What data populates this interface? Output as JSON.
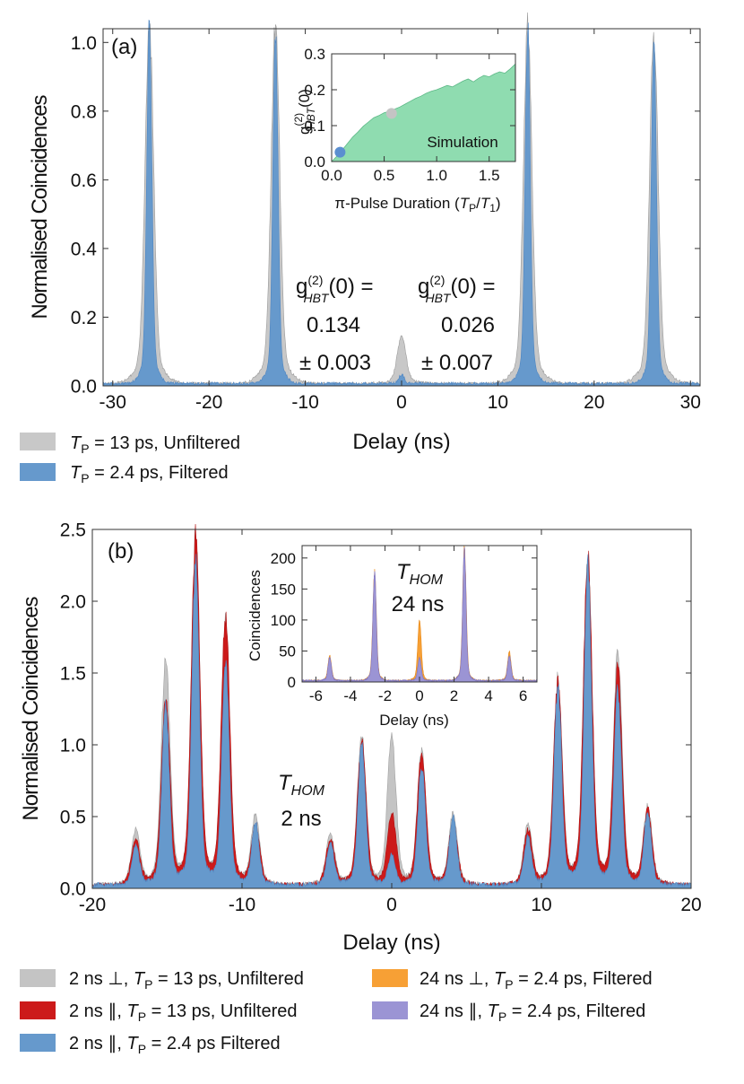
{
  "chart_data": [
    {
      "id": "a",
      "type": "area",
      "panel_label": "(a)",
      "xlabel": "Delay (ns)",
      "ylabel": "Normalised Coincidences",
      "xlim": [
        -31,
        31
      ],
      "ylim": [
        0,
        1.04
      ],
      "xticks": [
        -30,
        -20,
        -10,
        0,
        10,
        20,
        30
      ],
      "yticks": [
        0.0,
        0.2,
        0.4,
        0.6,
        0.8,
        1.0
      ],
      "peak_width_ns": 0.35,
      "series": [
        {
          "name_parts": [
            "T",
            "P",
            " = 13 ps, Unfiltered"
          ],
          "color": "#c8c8c8",
          "peaks": [
            {
              "x": -26.2,
              "y": 1.0
            },
            {
              "x": -13.1,
              "y": 1.0
            },
            {
              "x": 0,
              "y": 0.134
            },
            {
              "x": 13.1,
              "y": 1.0
            },
            {
              "x": 26.2,
              "y": 0.97
            }
          ]
        },
        {
          "name_parts": [
            "T",
            "P",
            " = 2.4 ps, Filtered"
          ],
          "color": "#6699cc",
          "peaks": [
            {
              "x": -26.2,
              "y": 1.0
            },
            {
              "x": -13.1,
              "y": 0.99
            },
            {
              "x": 0,
              "y": 0.026
            },
            {
              "x": 13.1,
              "y": 1.0
            },
            {
              "x": 26.2,
              "y": 0.97
            }
          ]
        }
      ],
      "annotations": {
        "left_label_prefix": "g",
        "left_sup": "(2)",
        "left_sub": "HBT",
        "left_suffix": "(0) =",
        "left_value": "0.134",
        "left_error": "± 0.003",
        "right_label_prefix": "g",
        "right_sup": "(2)",
        "right_sub": "HBT",
        "right_suffix": "(0) =",
        "right_value": "0.026",
        "right_error": "± 0.007",
        "right_color": "#2b4a73"
      },
      "inset": {
        "type": "area",
        "xlabel_prefix": "π-Pulse Duration (",
        "xlabel_var": "T",
        "xlabel_sub1": "P",
        "xlabel_slash": "/",
        "xlabel_var2": "T",
        "xlabel_sub2": "1",
        "xlabel_suffix": ")",
        "ylabel_prefix": "g",
        "ylabel_sup": "(2)",
        "ylabel_sub": "HBT",
        "ylabel_suffix": "(0)",
        "xlim": [
          0,
          1.75
        ],
        "ylim": [
          0,
          0.3
        ],
        "xticks": [
          0.0,
          0.5,
          1.0,
          1.5
        ],
        "yticks": [
          0.0,
          0.1,
          0.2,
          0.3
        ],
        "simulation_label": "Simulation",
        "simulation_color": "#8fdcb0",
        "simulation_x": [
          0.0,
          0.05,
          0.1,
          0.15,
          0.2,
          0.25,
          0.3,
          0.35,
          0.4,
          0.45,
          0.5,
          0.55,
          0.6,
          0.65,
          0.7,
          0.75,
          0.8,
          0.85,
          0.9,
          0.95,
          1.0,
          1.05,
          1.1,
          1.15,
          1.2,
          1.25,
          1.3,
          1.35,
          1.4,
          1.45,
          1.5,
          1.55,
          1.6,
          1.65,
          1.7,
          1.75
        ],
        "simulation_y": [
          0.0,
          0.015,
          0.032,
          0.05,
          0.068,
          0.082,
          0.098,
          0.11,
          0.122,
          0.128,
          0.136,
          0.14,
          0.146,
          0.152,
          0.16,
          0.168,
          0.176,
          0.182,
          0.19,
          0.196,
          0.2,
          0.206,
          0.212,
          0.208,
          0.216,
          0.224,
          0.23,
          0.222,
          0.232,
          0.24,
          0.236,
          0.244,
          0.25,
          0.246,
          0.258,
          0.272
        ],
        "points": [
          {
            "x": 0.08,
            "y": 0.026,
            "color": "#5b8fd0"
          },
          {
            "x": 0.57,
            "y": 0.134,
            "color": "#c4c4c4"
          }
        ]
      }
    },
    {
      "id": "b",
      "type": "area",
      "panel_label": "(b)",
      "xlabel": "Delay (ns)",
      "ylabel": "Normalised Coincidences",
      "xlim": [
        -20,
        20
      ],
      "ylim": [
        0,
        2.5
      ],
      "xticks": [
        -20,
        -10,
        0,
        10,
        20
      ],
      "yticks": [
        0.0,
        0.5,
        1.0,
        1.5,
        2.0,
        2.5
      ],
      "peak_width_ns": 0.28,
      "series": [
        {
          "name_parts": [
            "2 ns ⊥, ",
            "T",
            "P",
            " = 13 ps, Unfiltered"
          ],
          "color": "#c4c4c4",
          "peaks": [
            {
              "x": -17.1,
              "y": 0.36
            },
            {
              "x": -15.1,
              "y": 1.52
            },
            {
              "x": -13.1,
              "y": 2.32
            },
            {
              "x": -11.1,
              "y": 1.75
            },
            {
              "x": -9.1,
              "y": 0.46
            },
            {
              "x": -4.1,
              "y": 0.34
            },
            {
              "x": -2.0,
              "y": 1.0
            },
            {
              "x": 0,
              "y": 1.0
            },
            {
              "x": 2.0,
              "y": 0.9
            },
            {
              "x": 4.1,
              "y": 0.47
            },
            {
              "x": 9.1,
              "y": 0.4
            },
            {
              "x": 11.1,
              "y": 1.38
            },
            {
              "x": 13.1,
              "y": 2.18
            },
            {
              "x": 15.1,
              "y": 1.55
            },
            {
              "x": 17.1,
              "y": 0.52
            }
          ]
        },
        {
          "name_parts": [
            "2 ns ∥, ",
            "T",
            "P",
            " = 13 ps, Unfiltered"
          ],
          "color": "#cc1a1a",
          "peaks": [
            {
              "x": -17.1,
              "y": 0.3
            },
            {
              "x": -15.1,
              "y": 1.23
            },
            {
              "x": -13.1,
              "y": 2.32
            },
            {
              "x": -11.1,
              "y": 1.8
            },
            {
              "x": -9.1,
              "y": 0.4
            },
            {
              "x": -4.1,
              "y": 0.3
            },
            {
              "x": -2.0,
              "y": 0.96
            },
            {
              "x": 0,
              "y": 0.48
            },
            {
              "x": 2.0,
              "y": 0.88
            },
            {
              "x": 4.1,
              "y": 0.42
            },
            {
              "x": 9.1,
              "y": 0.36
            },
            {
              "x": 11.1,
              "y": 1.35
            },
            {
              "x": 13.1,
              "y": 2.2
            },
            {
              "x": 15.1,
              "y": 1.45
            },
            {
              "x": 17.1,
              "y": 0.5
            }
          ]
        },
        {
          "name_parts": [
            "2 ns ∥, ",
            "T",
            "P",
            " = 2.4 ps Filtered"
          ],
          "color": "#6699cc",
          "peaks": [
            {
              "x": -17.1,
              "y": 0.26
            },
            {
              "x": -15.1,
              "y": 1.2
            },
            {
              "x": -13.1,
              "y": 2.2
            },
            {
              "x": -11.1,
              "y": 1.5
            },
            {
              "x": -9.1,
              "y": 0.42
            },
            {
              "x": -4.1,
              "y": 0.28
            },
            {
              "x": -2.0,
              "y": 0.94
            },
            {
              "x": 0,
              "y": 0.2
            },
            {
              "x": 2.0,
              "y": 0.8
            },
            {
              "x": 4.1,
              "y": 0.45
            },
            {
              "x": 9.1,
              "y": 0.32
            },
            {
              "x": 11.1,
              "y": 1.33
            },
            {
              "x": 13.1,
              "y": 2.12
            },
            {
              "x": 15.1,
              "y": 1.3
            },
            {
              "x": 17.1,
              "y": 0.48
            }
          ]
        },
        {
          "name_parts": [
            "24 ns ⊥, ",
            "T",
            "P",
            " = 2.4 ps, Filtered"
          ],
          "color": "#f7a035",
          "in_inset": true
        },
        {
          "name_parts": [
            "24 ns ∥, ",
            "T",
            "P",
            " = 2.4 ps, Filtered"
          ],
          "color": "#9b94d4",
          "in_inset": true
        }
      ],
      "annotation": {
        "var": "T",
        "sub": "HOM",
        "value": "2 ns"
      },
      "inset": {
        "type": "area",
        "xlabel": "Delay (ns)",
        "ylabel": "Coincidences",
        "xlim": [
          -6.8,
          6.8
        ],
        "ylim": [
          0,
          220
        ],
        "xticks": [
          -6,
          -4,
          -2,
          0,
          2,
          4,
          6
        ],
        "yticks": [
          0,
          50,
          100,
          150,
          200
        ],
        "peak_width_ns": 0.1,
        "annotation": {
          "var": "T",
          "sub": "HOM",
          "value": "24 ns"
        },
        "series": [
          {
            "name": "24 ns ⊥",
            "color": "#f7a035",
            "peaks": [
              {
                "x": -5.2,
                "y": 38
              },
              {
                "x": -2.6,
                "y": 168
              },
              {
                "x": 0,
                "y": 92
              },
              {
                "x": 2.6,
                "y": 205
              },
              {
                "x": 5.2,
                "y": 44
              }
            ]
          },
          {
            "name": "24 ns ∥",
            "color": "#9b94d4",
            "peaks": [
              {
                "x": -5.2,
                "y": 36
              },
              {
                "x": -2.6,
                "y": 168
              },
              {
                "x": 0,
                "y": 35
              },
              {
                "x": 2.6,
                "y": 205
              },
              {
                "x": 5.2,
                "y": 38
              }
            ]
          }
        ]
      }
    }
  ]
}
